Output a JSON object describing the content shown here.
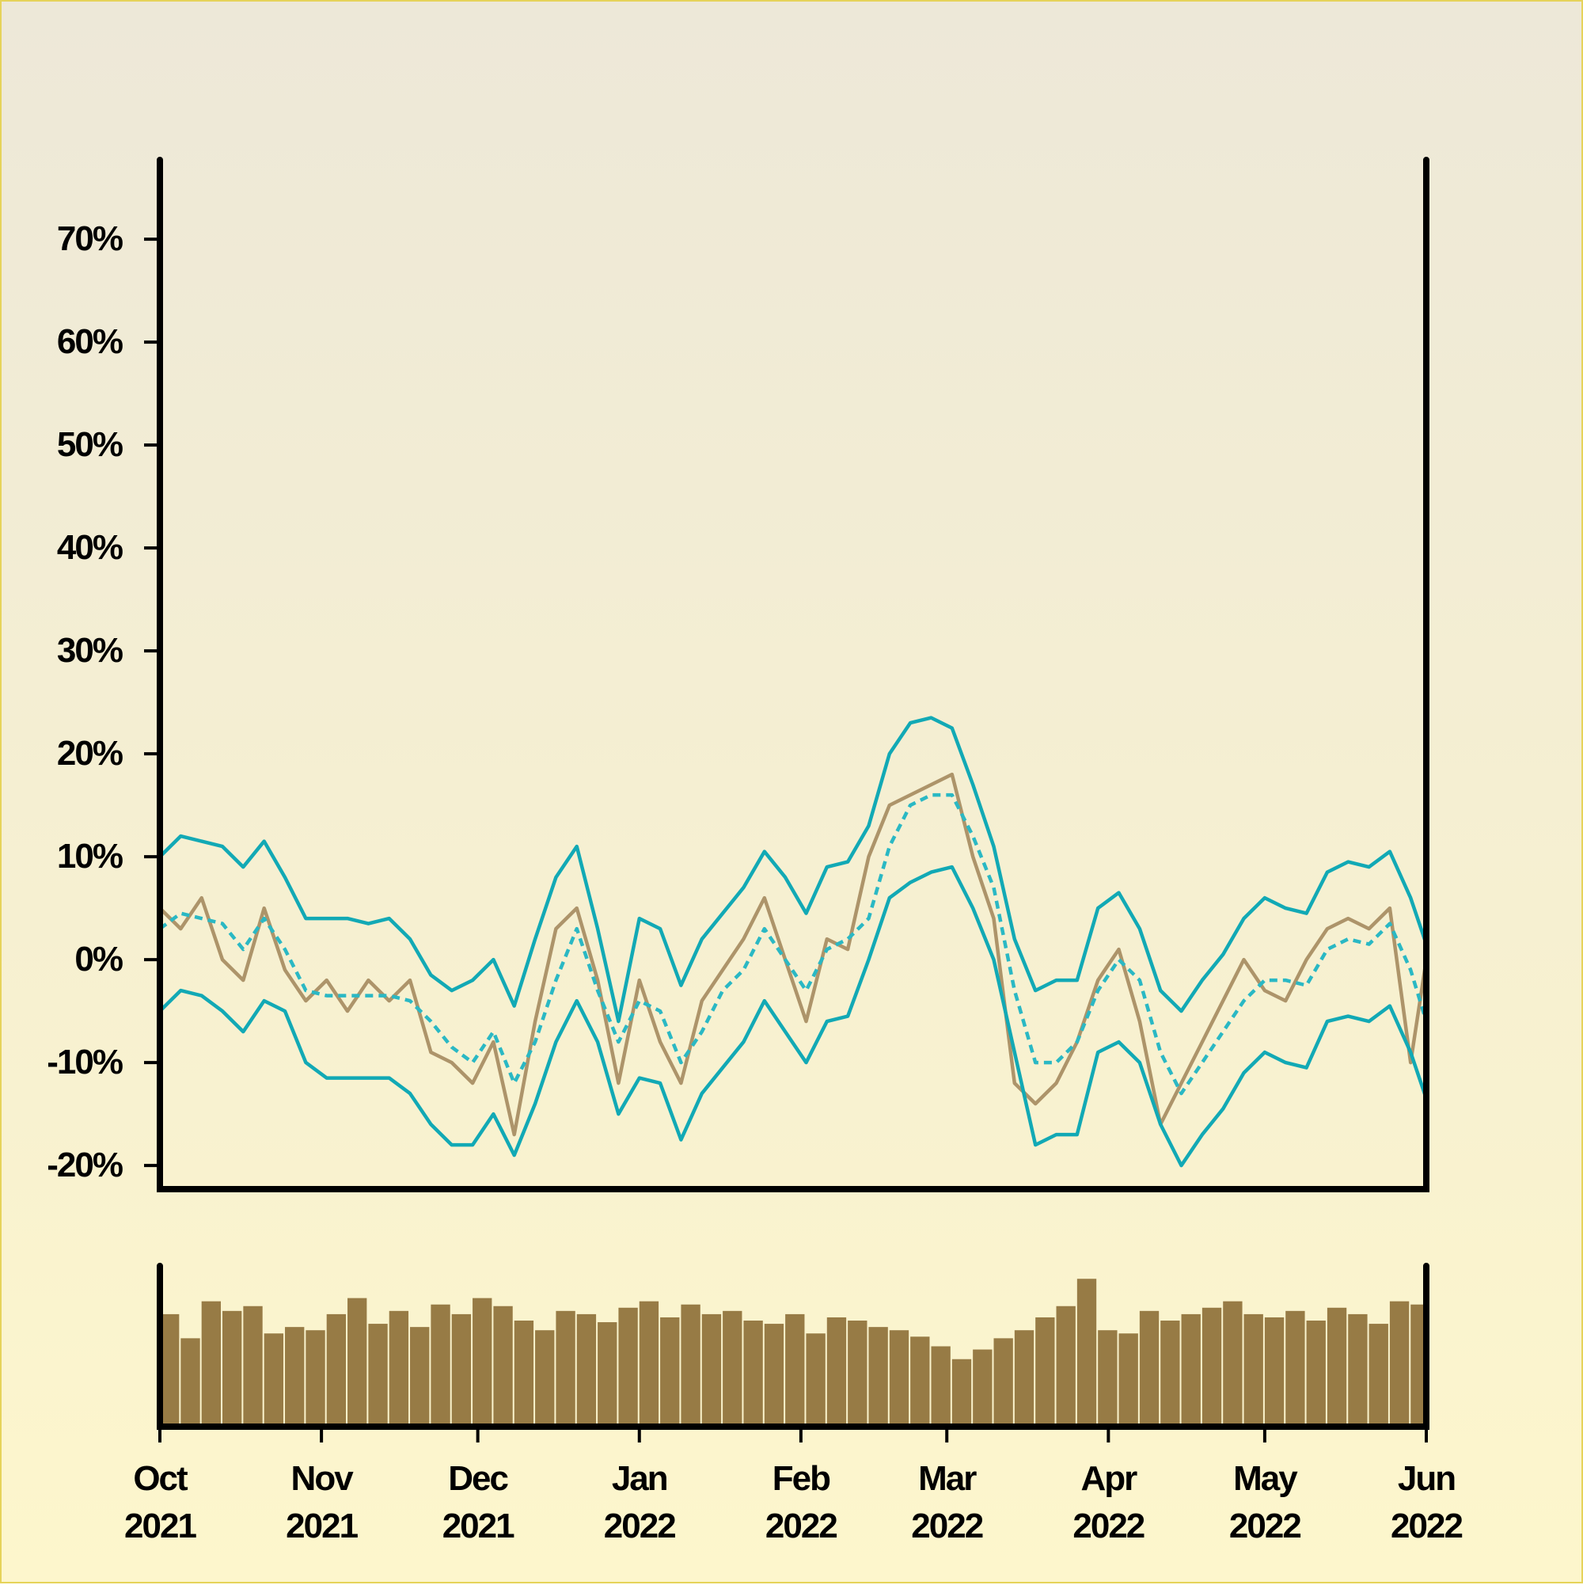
{
  "chart_data": [
    {
      "type": "line",
      "x": [
        0,
        4,
        8,
        12,
        16,
        20,
        24,
        28,
        32,
        36,
        40,
        44,
        48,
        52,
        56,
        60,
        64,
        68,
        72,
        76,
        80,
        84,
        88,
        92,
        96,
        100,
        104,
        108,
        112,
        116,
        120,
        124,
        128,
        132,
        136,
        140,
        144,
        148,
        152,
        156,
        160,
        164,
        168,
        172,
        176,
        180,
        184,
        188,
        192,
        196,
        200,
        204,
        208,
        212,
        216,
        220,
        224,
        228,
        232,
        236,
        240,
        243
      ],
      "xlim": [
        0,
        243
      ],
      "ylim": [
        -22.3,
        77.7
      ],
      "yticks": [
        {
          "value": -20,
          "label": "-20%"
        },
        {
          "value": -10,
          "label": "-10%"
        },
        {
          "value": 0,
          "label": "0%"
        },
        {
          "value": 10,
          "label": "10%"
        },
        {
          "value": 20,
          "label": "20%"
        },
        {
          "value": 30,
          "label": "30%"
        },
        {
          "value": 40,
          "label": "40%"
        },
        {
          "value": 50,
          "label": "50%"
        },
        {
          "value": 60,
          "label": "60%"
        },
        {
          "value": 70,
          "label": "70%"
        }
      ],
      "series": [
        {
          "color": "#ad946a",
          "style": "solid",
          "values": [
            5,
            3,
            6,
            0,
            -2,
            5,
            -1,
            -4,
            -2,
            -5,
            -2,
            -4,
            -2,
            -9,
            -10,
            -12,
            -8,
            -17,
            -6,
            3,
            5,
            -2,
            -12,
            -2,
            -8,
            -12,
            -4,
            -1,
            2,
            6,
            0,
            -6,
            2,
            1,
            10,
            15,
            16,
            17,
            18,
            10,
            4,
            -12,
            -14,
            -12,
            -8,
            -2,
            1,
            -6,
            -16,
            -12,
            -8,
            -4,
            0,
            -3,
            -4,
            0,
            3,
            4,
            3,
            5,
            -10,
            0
          ]
        },
        {
          "color": "#12a9b5",
          "style": "solid",
          "values": [
            10,
            12,
            11.5,
            11,
            9,
            11.5,
            8,
            4,
            4,
            4,
            3.5,
            4,
            2,
            -1.5,
            -3,
            -2,
            0,
            -4.5,
            2,
            8,
            11,
            3,
            -6,
            4,
            3,
            -2.5,
            2,
            4.5,
            7,
            10.5,
            8,
            4.5,
            9,
            9.5,
            13,
            20,
            23,
            23.5,
            22.5,
            17,
            11,
            2,
            -3,
            -2,
            -2,
            5,
            6.5,
            3,
            -3,
            -5,
            -2,
            0.5,
            4,
            6,
            5,
            4.5,
            8.5,
            9.5,
            9,
            10.5,
            6,
            1.5
          ]
        },
        {
          "color": "#2ab8c4",
          "style": "dashed",
          "values": [
            3,
            4.5,
            4,
            3.5,
            1,
            4,
            1,
            -3,
            -3.5,
            -3.5,
            -3.5,
            -3.5,
            -4,
            -6,
            -8.5,
            -10,
            -7,
            -12,
            -8,
            -2,
            3,
            -3,
            -8,
            -4,
            -5,
            -10,
            -7,
            -3,
            -1,
            3,
            0,
            -3,
            1,
            2,
            4,
            11,
            15,
            16,
            16,
            12,
            7,
            -3,
            -10,
            -10,
            -8,
            -3,
            0,
            -2,
            -9,
            -13,
            -10,
            -7,
            -4,
            -2,
            -2,
            -2.5,
            1,
            2,
            1.5,
            3.5,
            -1,
            -6
          ]
        },
        {
          "color": "#12a9b5",
          "style": "solid",
          "values": [
            -5,
            -3,
            -3.5,
            -5,
            -7,
            -4,
            -5,
            -10,
            -11.5,
            -11.5,
            -11.5,
            -11.5,
            -13,
            -16,
            -18,
            -18,
            -15,
            -19,
            -14,
            -8,
            -4,
            -8,
            -15,
            -11.5,
            -12,
            -17.5,
            -13,
            -10.5,
            -8,
            -4,
            -7,
            -10,
            -6,
            -5.5,
            0,
            6,
            7.5,
            8.5,
            9,
            5,
            0,
            -9,
            -18,
            -17,
            -17,
            -9,
            -8,
            -10,
            -16,
            -20,
            -17,
            -14.5,
            -11,
            -9,
            -10,
            -10.5,
            -6,
            -5.5,
            -6,
            -4.5,
            -9,
            -13.5
          ]
        }
      ]
    },
    {
      "type": "bar",
      "x": [
        0,
        4,
        8,
        12,
        16,
        20,
        24,
        28,
        32,
        36,
        40,
        44,
        48,
        52,
        56,
        60,
        64,
        68,
        72,
        76,
        80,
        84,
        88,
        92,
        96,
        100,
        104,
        108,
        112,
        116,
        120,
        124,
        128,
        132,
        136,
        140,
        144,
        148,
        152,
        156,
        160,
        164,
        168,
        172,
        176,
        180,
        184,
        188,
        192,
        196,
        200,
        204,
        208,
        212,
        216,
        220,
        224,
        228,
        232,
        236,
        240,
        243
      ],
      "xlim": [
        0,
        243
      ],
      "xticks": [
        {
          "value": 0,
          "label": "Oct\n2021"
        },
        {
          "value": 31,
          "label": "Nov\n2021"
        },
        {
          "value": 61,
          "label": "Dec\n2021"
        },
        {
          "value": 92,
          "label": "Jan\n2022"
        },
        {
          "value": 123,
          "label": "Feb\n2022"
        },
        {
          "value": 151,
          "label": "Mar\n2022"
        },
        {
          "value": 182,
          "label": "Apr\n2022"
        },
        {
          "value": 212,
          "label": "May\n2022"
        },
        {
          "value": 243,
          "label": "Jun\n2022"
        }
      ],
      "ylim": [
        0,
        100
      ],
      "color": "#977b45",
      "values": [
        70,
        55,
        78,
        72,
        75,
        58,
        62,
        60,
        70,
        80,
        64,
        72,
        62,
        76,
        70,
        80,
        75,
        66,
        60,
        72,
        70,
        65,
        74,
        78,
        68,
        76,
        70,
        72,
        66,
        64,
        70,
        58,
        68,
        66,
        62,
        60,
        56,
        50,
        42,
        48,
        55,
        60,
        68,
        75,
        92,
        60,
        58,
        72,
        66,
        70,
        74,
        78,
        70,
        68,
        72,
        66,
        74,
        70,
        64,
        78,
        76,
        72
      ]
    }
  ]
}
